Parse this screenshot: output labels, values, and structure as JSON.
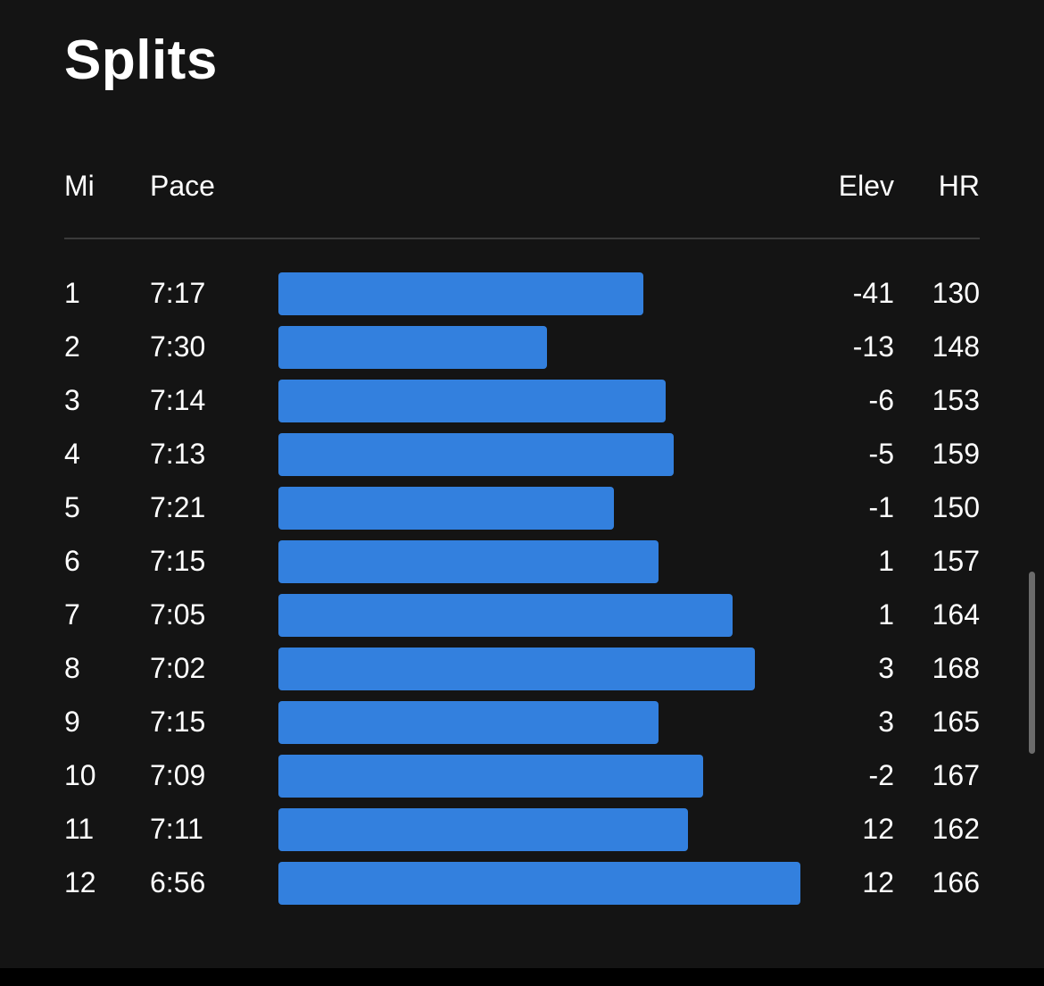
{
  "title": "Splits",
  "columns": {
    "mile": "Mi",
    "pace": "Pace",
    "elevation": "Elev",
    "heart_rate": "HR"
  },
  "colors": {
    "background": "#141414",
    "bar": "#3380de",
    "divider": "#3a3a3a",
    "text": "#ffffff"
  },
  "chart_data": {
    "type": "bar",
    "orientation": "horizontal",
    "categories": [
      "1",
      "2",
      "3",
      "4",
      "5",
      "6",
      "7",
      "8",
      "9",
      "10",
      "11",
      "12"
    ],
    "pace_seconds": [
      437,
      450,
      434,
      433,
      441,
      435,
      425,
      422,
      435,
      429,
      431,
      416
    ],
    "grid": false
  },
  "splits": [
    {
      "mile": "1",
      "pace": "7:17",
      "elev": "-41",
      "hr": "130"
    },
    {
      "mile": "2",
      "pace": "7:30",
      "elev": "-13",
      "hr": "148"
    },
    {
      "mile": "3",
      "pace": "7:14",
      "elev": "-6",
      "hr": "153"
    },
    {
      "mile": "4",
      "pace": "7:13",
      "elev": "-5",
      "hr": "159"
    },
    {
      "mile": "5",
      "pace": "7:21",
      "elev": "-1",
      "hr": "150"
    },
    {
      "mile": "6",
      "pace": "7:15",
      "elev": "1",
      "hr": "157"
    },
    {
      "mile": "7",
      "pace": "7:05",
      "elev": "1",
      "hr": "164"
    },
    {
      "mile": "8",
      "pace": "7:02",
      "elev": "3",
      "hr": "168"
    },
    {
      "mile": "9",
      "pace": "7:15",
      "elev": "3",
      "hr": "165"
    },
    {
      "mile": "10",
      "pace": "7:09",
      "elev": "-2",
      "hr": "167"
    },
    {
      "mile": "11",
      "pace": "7:11",
      "elev": "12",
      "hr": "162"
    },
    {
      "mile": "12",
      "pace": "6:56",
      "elev": "12",
      "hr": "166"
    }
  ]
}
